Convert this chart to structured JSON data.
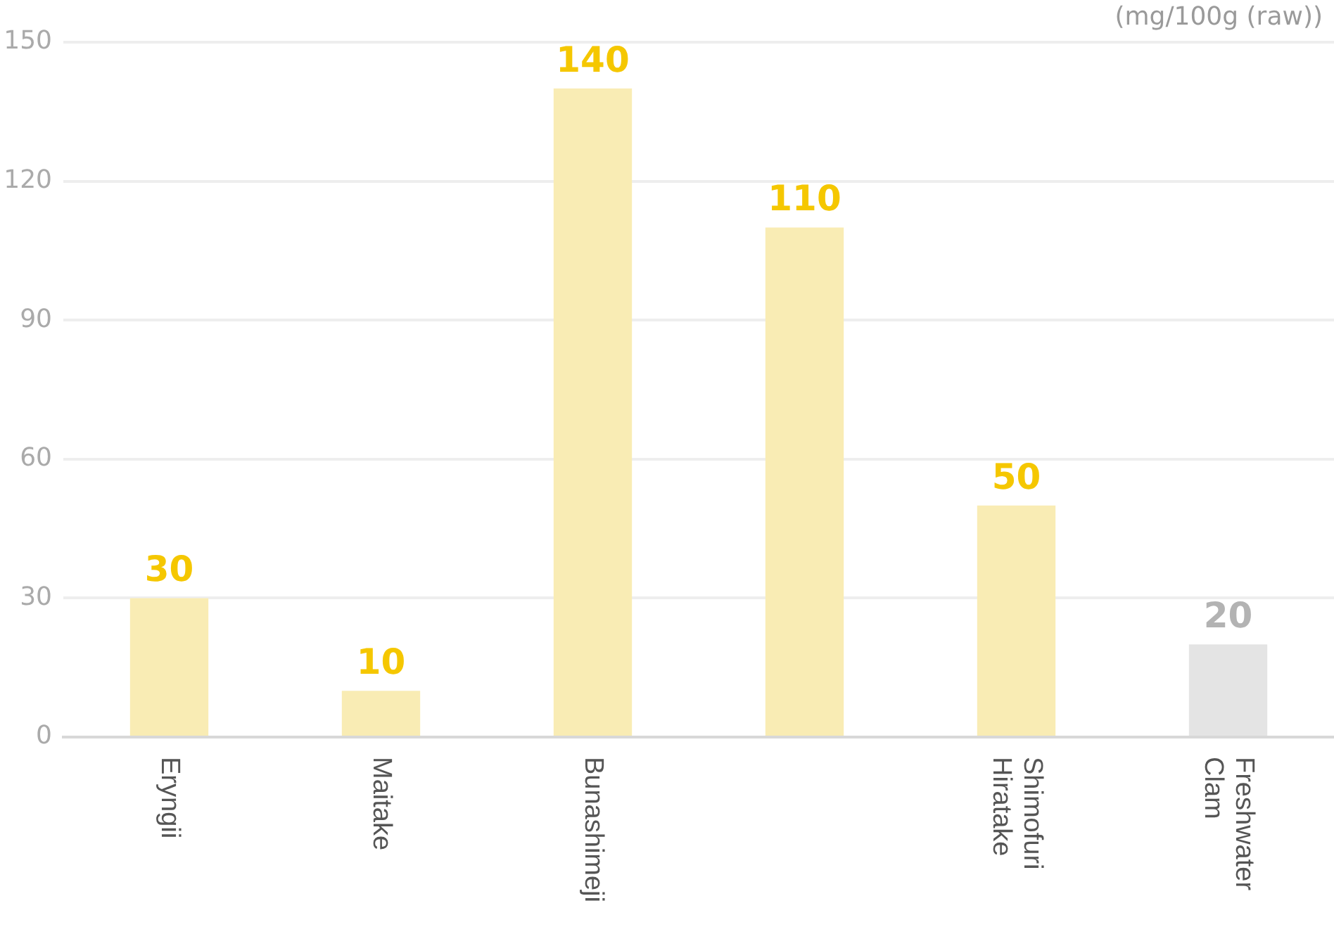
{
  "chart_data": {
    "type": "bar",
    "ylabel": "(mg/100g (raw))",
    "categories": [
      "Eryngii",
      "Maitake",
      "Bunashimeji",
      null,
      "Shimofuri Hiratake",
      "Freshwater Clam"
    ],
    "values": [
      30,
      10,
      140,
      110,
      50,
      20
    ],
    "colors": [
      "#f9ecb4",
      "#f9ecb4",
      "#f9ecb4",
      "#f9ecb4",
      "#f9ecb4",
      "#e4e4e4"
    ],
    "ylim": [
      0,
      150
    ],
    "yticks": [
      0,
      30,
      60,
      90,
      120,
      150
    ],
    "grid": "y",
    "data_labels": true,
    "legend": false
  }
}
